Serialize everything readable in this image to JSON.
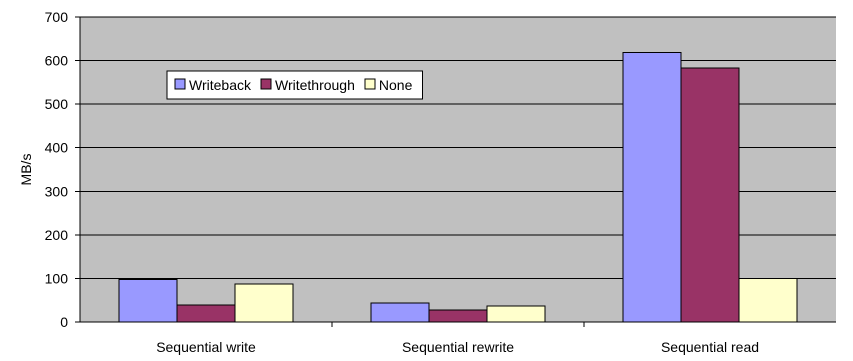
{
  "chart_data": {
    "type": "bar",
    "title": "",
    "xlabel": "",
    "ylabel": "MB/s",
    "ylim": [
      0,
      700
    ],
    "yticks": [
      0,
      100,
      200,
      300,
      400,
      500,
      600,
      700
    ],
    "grid": true,
    "legend_position": "top-left",
    "categories": [
      "Sequential write",
      "Sequential rewrite",
      "Sequential read"
    ],
    "series": [
      {
        "name": "Writeback",
        "color": "#9999ff",
        "values": [
          98,
          44,
          619
        ]
      },
      {
        "name": "Writethrough",
        "color": "#993366",
        "values": [
          39,
          27,
          583
        ]
      },
      {
        "name": "None",
        "color": "#ffffcc",
        "values": [
          87,
          37,
          100
        ]
      }
    ],
    "plot_background": "#c0c0c0"
  }
}
